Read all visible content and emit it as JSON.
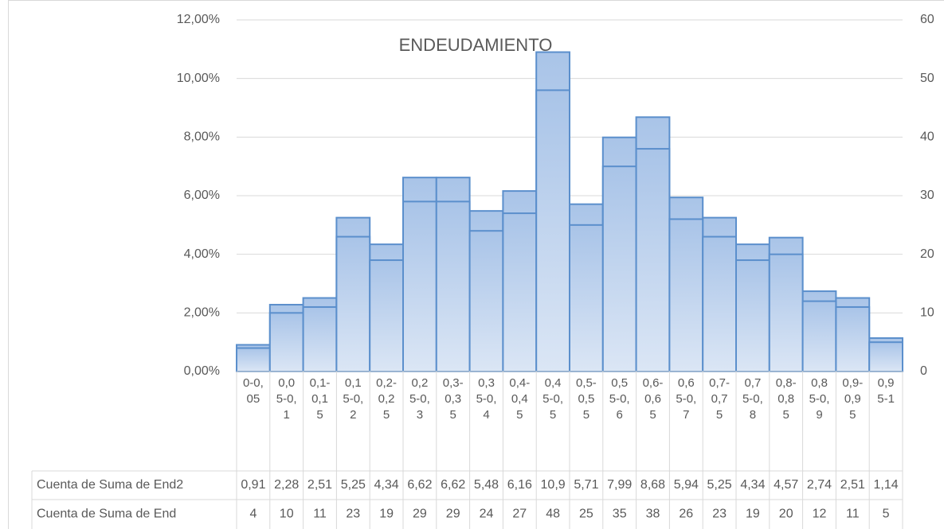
{
  "chart_data": {
    "type": "bar",
    "title": "ENDEUDAMIENTO",
    "categories": [
      "0-0,05",
      "0,05-0,1",
      "0,1-0,15",
      "0,15-0,2",
      "0,2-0,25",
      "0,25-0,3",
      "0,3-0,35",
      "0,35-0,4",
      "0,4-0,45",
      "0,45-0,5",
      "0,5-0,55",
      "0,55-0,6",
      "0,6-0,65",
      "0,65-0,7",
      "0,7-0,75",
      "0,75-0,8",
      "0,8-0,85",
      "0,85-0,9",
      "0,9-0,95",
      "0,95-1"
    ],
    "series": [
      {
        "name": "Cuenta de Suma de End2",
        "color": "#a9c4e8",
        "axis": "y",
        "values": [
          0.91,
          2.28,
          2.51,
          5.25,
          4.34,
          6.62,
          6.62,
          5.48,
          6.16,
          10.9,
          5.71,
          7.99,
          8.68,
          5.94,
          5.25,
          4.34,
          4.57,
          2.74,
          2.51,
          1.14
        ],
        "value_labels": [
          "0,91",
          "2,28",
          "2,51",
          "5,25",
          "4,34",
          "6,62",
          "6,62",
          "5,48",
          "6,16",
          "10,9",
          "5,71",
          "7,99",
          "8,68",
          "5,94",
          "5,25",
          "4,34",
          "4,57",
          "2,74",
          "2,51",
          "1,14"
        ]
      },
      {
        "name": "Cuenta de Suma de End",
        "color": "#a9c4e8",
        "axis": "y2",
        "values": [
          4,
          10,
          11,
          23,
          19,
          29,
          29,
          24,
          27,
          48,
          25,
          35,
          38,
          26,
          23,
          19,
          20,
          12,
          11,
          5
        ]
      }
    ],
    "ylim": [
      0,
      12
    ],
    "yticks": [
      {
        "value": 0,
        "label": "0,00%"
      },
      {
        "value": 2,
        "label": "2,00%"
      },
      {
        "value": 4,
        "label": "4,00%"
      },
      {
        "value": 6,
        "label": "6,00%"
      },
      {
        "value": 8,
        "label": "8,00%"
      },
      {
        "value": 10,
        "label": "10,00%"
      },
      {
        "value": 12,
        "label": "12,00%"
      }
    ],
    "y2lim": [
      0,
      60
    ],
    "y2ticks": [
      0,
      10,
      20,
      30,
      40,
      50,
      60
    ],
    "grid": true
  }
}
